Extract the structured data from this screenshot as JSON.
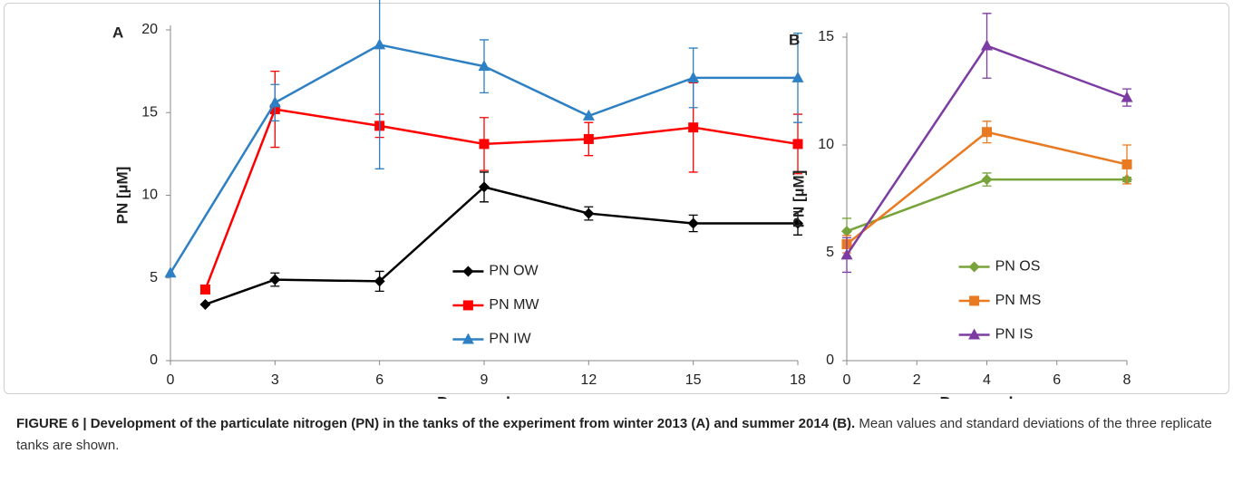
{
  "chart_data": [
    {
      "type": "line",
      "panel_label": "A",
      "x_label": "Day number",
      "y_label": "PN [µM]",
      "xlim": [
        0,
        18
      ],
      "xticks": [
        0,
        3,
        6,
        9,
        12,
        15,
        18
      ],
      "ylim": [
        0,
        20
      ],
      "yticks": [
        0,
        5,
        10,
        15,
        20
      ],
      "legend": "center",
      "series": [
        {
          "name": "PN OW",
          "color": "#000000",
          "marker": "diamond",
          "x": [
            1,
            3,
            6,
            9,
            12,
            15,
            18
          ],
          "values": [
            3.4,
            4.9,
            4.8,
            10.5,
            8.9,
            8.3,
            8.3
          ],
          "errors": [
            null,
            0.4,
            0.6,
            0.9,
            0.4,
            0.5,
            0.7
          ]
        },
        {
          "name": "PN MW",
          "color": "#ff0000",
          "marker": "square",
          "x": [
            1,
            3,
            6,
            9,
            12,
            15,
            18
          ],
          "values": [
            4.3,
            15.2,
            14.2,
            13.1,
            13.4,
            14.1,
            13.1
          ],
          "errors": [
            null,
            2.3,
            0.7,
            1.6,
            1.0,
            2.7,
            1.8
          ]
        },
        {
          "name": "PN IW",
          "color": "#2e80c4",
          "marker": "triangle",
          "x": [
            0,
            3,
            6,
            9,
            12,
            15,
            18
          ],
          "values": [
            5.3,
            15.6,
            19.1,
            17.8,
            14.8,
            17.1,
            17.1
          ],
          "errors": [
            null,
            1.1,
            7.5,
            1.6,
            null,
            1.8,
            2.7
          ]
        }
      ]
    },
    {
      "type": "line",
      "panel_label": "B",
      "x_label": "Day number",
      "y_label": "PN [µM]",
      "xlim": [
        0,
        8
      ],
      "xticks": [
        0,
        2,
        4,
        6,
        8
      ],
      "ylim": [
        0,
        15
      ],
      "yticks": [
        0,
        5,
        10,
        15
      ],
      "legend": "lower center",
      "series": [
        {
          "name": "PN OS",
          "color": "#77a33a",
          "marker": "diamond",
          "x": [
            0,
            4,
            8
          ],
          "values": [
            6.0,
            8.4,
            8.4
          ],
          "errors": [
            0.6,
            0.3,
            0.1
          ]
        },
        {
          "name": "PN MS",
          "color": "#e97a22",
          "marker": "square",
          "x": [
            0,
            4,
            8
          ],
          "values": [
            5.4,
            10.6,
            9.1
          ],
          "errors": [
            0.4,
            0.5,
            0.9
          ]
        },
        {
          "name": "PN IS",
          "color": "#7d3ca3",
          "marker": "triangle",
          "x": [
            0,
            4,
            8
          ],
          "values": [
            4.9,
            14.6,
            12.2
          ],
          "errors": [
            0.8,
            1.5,
            0.4
          ]
        }
      ]
    }
  ],
  "caption": {
    "heading": "FIGURE 6 | Development of the particulate nitrogen (PN) in the tanks of the experiment from winter 2013 (A) and summer 2014 (B).",
    "text": "Mean values and standard deviations of the three replicate tanks are shown."
  }
}
